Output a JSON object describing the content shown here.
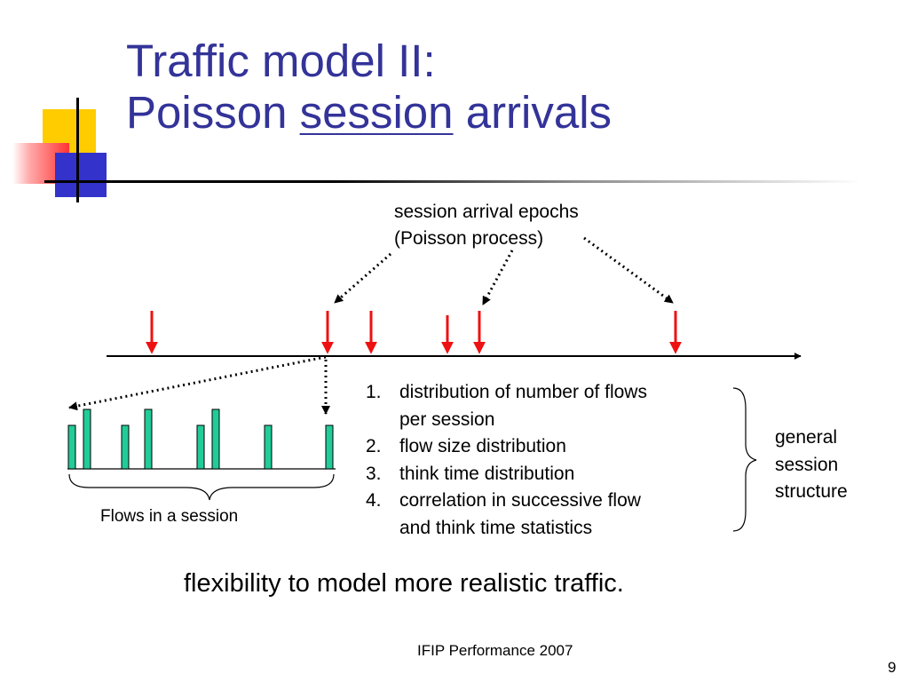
{
  "slide": {
    "title_line1": "Traffic model II:",
    "title_line2_prefix": "Poisson ",
    "title_line2_emphasis": "session",
    "title_line2_suffix": " arrivals",
    "epoch_label_line1": "session arrival epochs",
    "epoch_label_line2": "(Poisson process)",
    "flows_label": "Flows in a session",
    "structure_items": [
      {
        "num": "1.",
        "lines": [
          "distribution of number of flows",
          "per session"
        ]
      },
      {
        "num": "2.",
        "lines": [
          "flow size distribution"
        ]
      },
      {
        "num": "3.",
        "lines": [
          "think time distribution"
        ]
      },
      {
        "num": "4.",
        "lines": [
          "correlation in successive flow",
          "and think time statistics"
        ]
      }
    ],
    "brace_label_lines": [
      "general",
      "session",
      "structure"
    ],
    "conclusion": "flexibility to model more realistic traffic.",
    "footer": "IFIP Performance 2007",
    "page_number": "9"
  },
  "colors": {
    "title": "#333399",
    "arrival_arrow": "#ee1111",
    "flow_bar": "#22cc99",
    "accent_yellow": "#ffcc00",
    "accent_blue": "#3333cc",
    "accent_red": "#ff3333"
  }
}
